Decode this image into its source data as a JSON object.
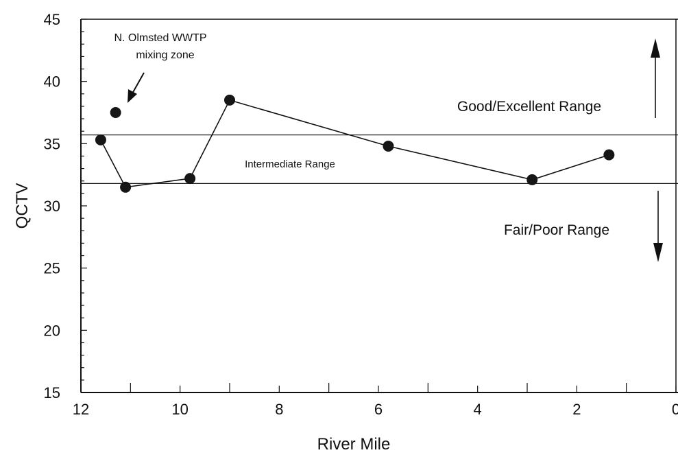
{
  "chart_data": {
    "type": "scatter",
    "title": "",
    "xlabel": "River Mile",
    "ylabel": "QCTV",
    "xlim": [
      12,
      0
    ],
    "ylim": [
      15,
      45
    ],
    "x_ticks": [
      12,
      10,
      8,
      6,
      4,
      2,
      0
    ],
    "x_tick_labels": [
      "12",
      "10",
      "8",
      "6",
      "4",
      "2",
      "0"
    ],
    "y_ticks": [
      15,
      20,
      25,
      30,
      35,
      40,
      45
    ],
    "y_tick_labels": [
      "15",
      "20",
      "25",
      "30",
      "35",
      "40",
      "45"
    ],
    "series": [
      {
        "connected": true,
        "points": [
          {
            "x": 11.6,
            "y": 35.3
          },
          {
            "x": 11.1,
            "y": 31.5
          },
          {
            "x": 9.8,
            "y": 32.2
          },
          {
            "x": 9.0,
            "y": 38.5
          },
          {
            "x": 5.8,
            "y": 34.8
          },
          {
            "x": 2.9,
            "y": 32.1
          },
          {
            "x": 1.35,
            "y": 34.1
          }
        ]
      },
      {
        "connected": false,
        "points": [
          {
            "x": 11.3,
            "y": 37.5
          }
        ]
      }
    ],
    "reference_lines": [
      {
        "y": 35.7
      },
      {
        "y": 31.8
      }
    ],
    "annotations": {
      "mixing_zone_line1": "N. Olmsted WWTP",
      "mixing_zone_line2": "mixing zone",
      "good_range": "Good/Excellent Range",
      "intermediate_range": "Intermediate Range",
      "fair_range": "Fair/Poor Range"
    },
    "grid": false,
    "legend": "none"
  }
}
